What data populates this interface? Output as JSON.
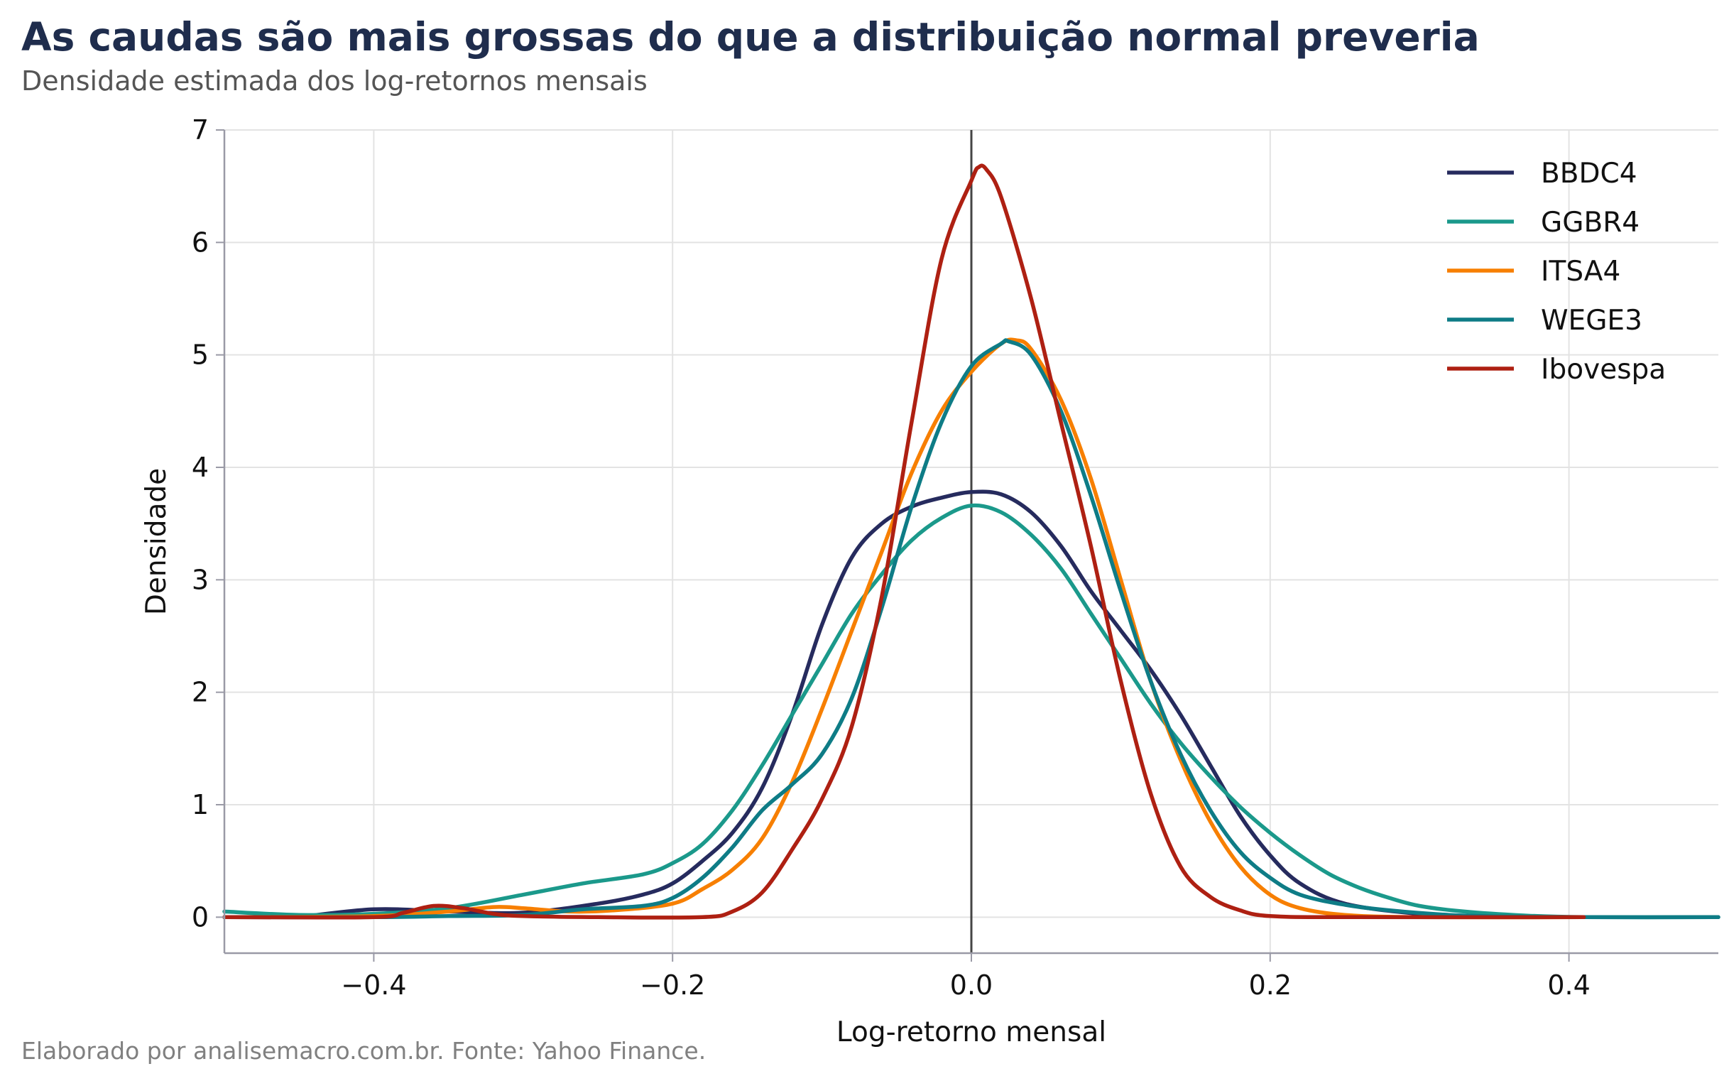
{
  "header": {
    "title": "As caudas são mais grossas do que a distribuição normal preveria",
    "subtitle": "Densidade estimada dos log-retornos mensais"
  },
  "footer": {
    "caption": "Elaborado por analisemacro.com.br. Fonte: Yahoo Finance."
  },
  "chart_data": {
    "type": "line",
    "title": "As caudas são mais grossas do que a distribuição normal preveria",
    "subtitle": "Densidade estimada dos log-retornos mensais",
    "xlabel": "Log-retorno mensal",
    "ylabel": "Densidade",
    "xlim": [
      -0.5,
      0.5
    ],
    "ylim": [
      -0.32,
      7
    ],
    "xticks": [
      -0.4,
      -0.2,
      0.0,
      0.2,
      0.4
    ],
    "xtick_labels": [
      "−0.4",
      "−0.2",
      "0.0",
      "0.2",
      "0.4"
    ],
    "yticks": [
      0,
      1,
      2,
      3,
      4,
      5,
      6,
      7
    ],
    "ytick_labels": [
      "0",
      "1",
      "2",
      "3",
      "4",
      "5",
      "6",
      "7"
    ],
    "grid": true,
    "legend_position": "top-right",
    "reference_line_x": 0.0,
    "series": [
      {
        "name": "BBDC4",
        "color": "#262b5e",
        "points": [
          [
            -0.45,
            0.0
          ],
          [
            -0.4,
            0.07
          ],
          [
            -0.35,
            0.05
          ],
          [
            -0.3,
            0.04
          ],
          [
            -0.25,
            0.12
          ],
          [
            -0.22,
            0.2
          ],
          [
            -0.2,
            0.3
          ],
          [
            -0.18,
            0.5
          ],
          [
            -0.16,
            0.75
          ],
          [
            -0.14,
            1.15
          ],
          [
            -0.12,
            1.8
          ],
          [
            -0.1,
            2.6
          ],
          [
            -0.08,
            3.2
          ],
          [
            -0.06,
            3.5
          ],
          [
            -0.04,
            3.65
          ],
          [
            -0.02,
            3.73
          ],
          [
            0.0,
            3.78
          ],
          [
            0.02,
            3.76
          ],
          [
            0.04,
            3.6
          ],
          [
            0.06,
            3.3
          ],
          [
            0.08,
            2.9
          ],
          [
            0.1,
            2.55
          ],
          [
            0.12,
            2.2
          ],
          [
            0.14,
            1.8
          ],
          [
            0.16,
            1.35
          ],
          [
            0.18,
            0.9
          ],
          [
            0.2,
            0.55
          ],
          [
            0.22,
            0.3
          ],
          [
            0.25,
            0.12
          ],
          [
            0.3,
            0.03
          ],
          [
            0.35,
            0.005
          ],
          [
            0.41,
            0.0
          ]
        ]
      },
      {
        "name": "GGBR4",
        "color": "#1b998b",
        "points": [
          [
            -0.5,
            0.05
          ],
          [
            -0.45,
            0.02
          ],
          [
            -0.4,
            0.03
          ],
          [
            -0.35,
            0.08
          ],
          [
            -0.3,
            0.2
          ],
          [
            -0.26,
            0.3
          ],
          [
            -0.22,
            0.38
          ],
          [
            -0.2,
            0.48
          ],
          [
            -0.18,
            0.65
          ],
          [
            -0.16,
            0.95
          ],
          [
            -0.14,
            1.35
          ],
          [
            -0.12,
            1.8
          ],
          [
            -0.1,
            2.25
          ],
          [
            -0.08,
            2.7
          ],
          [
            -0.06,
            3.05
          ],
          [
            -0.04,
            3.35
          ],
          [
            -0.02,
            3.55
          ],
          [
            0.0,
            3.66
          ],
          [
            0.02,
            3.6
          ],
          [
            0.04,
            3.4
          ],
          [
            0.06,
            3.1
          ],
          [
            0.08,
            2.7
          ],
          [
            0.1,
            2.3
          ],
          [
            0.12,
            1.9
          ],
          [
            0.14,
            1.55
          ],
          [
            0.16,
            1.25
          ],
          [
            0.18,
            0.98
          ],
          [
            0.2,
            0.75
          ],
          [
            0.22,
            0.55
          ],
          [
            0.24,
            0.38
          ],
          [
            0.26,
            0.26
          ],
          [
            0.28,
            0.17
          ],
          [
            0.3,
            0.1
          ],
          [
            0.33,
            0.05
          ],
          [
            0.37,
            0.015
          ],
          [
            0.41,
            0.0
          ],
          [
            0.5,
            0.0
          ]
        ]
      },
      {
        "name": "ITSA4",
        "color": "#f77f00",
        "points": [
          [
            -0.5,
            0.0
          ],
          [
            -0.4,
            0.01
          ],
          [
            -0.35,
            0.05
          ],
          [
            -0.32,
            0.09
          ],
          [
            -0.3,
            0.08
          ],
          [
            -0.27,
            0.05
          ],
          [
            -0.24,
            0.06
          ],
          [
            -0.2,
            0.12
          ],
          [
            -0.18,
            0.25
          ],
          [
            -0.16,
            0.42
          ],
          [
            -0.14,
            0.7
          ],
          [
            -0.12,
            1.2
          ],
          [
            -0.1,
            1.85
          ],
          [
            -0.08,
            2.55
          ],
          [
            -0.06,
            3.25
          ],
          [
            -0.04,
            3.95
          ],
          [
            -0.02,
            4.5
          ],
          [
            0.0,
            4.85
          ],
          [
            0.02,
            5.1
          ],
          [
            0.03,
            5.13
          ],
          [
            0.04,
            5.05
          ],
          [
            0.06,
            4.6
          ],
          [
            0.08,
            3.9
          ],
          [
            0.1,
            3.0
          ],
          [
            0.12,
            2.1
          ],
          [
            0.14,
            1.4
          ],
          [
            0.16,
            0.85
          ],
          [
            0.18,
            0.45
          ],
          [
            0.2,
            0.2
          ],
          [
            0.22,
            0.08
          ],
          [
            0.25,
            0.02
          ],
          [
            0.3,
            0.0
          ],
          [
            0.41,
            0.0
          ]
        ]
      },
      {
        "name": "WEGE3",
        "color": "#0e7c86",
        "points": [
          [
            -0.5,
            0.0
          ],
          [
            -0.4,
            0.0
          ],
          [
            -0.35,
            0.01
          ],
          [
            -0.3,
            0.02
          ],
          [
            -0.26,
            0.07
          ],
          [
            -0.22,
            0.1
          ],
          [
            -0.2,
            0.17
          ],
          [
            -0.18,
            0.35
          ],
          [
            -0.16,
            0.62
          ],
          [
            -0.14,
            0.95
          ],
          [
            -0.12,
            1.18
          ],
          [
            -0.1,
            1.45
          ],
          [
            -0.08,
            1.95
          ],
          [
            -0.06,
            2.75
          ],
          [
            -0.04,
            3.65
          ],
          [
            -0.02,
            4.4
          ],
          [
            0.0,
            4.9
          ],
          [
            0.02,
            5.1
          ],
          [
            0.025,
            5.12
          ],
          [
            0.04,
            5.0
          ],
          [
            0.06,
            4.5
          ],
          [
            0.08,
            3.75
          ],
          [
            0.1,
            2.9
          ],
          [
            0.12,
            2.1
          ],
          [
            0.14,
            1.45
          ],
          [
            0.16,
            0.95
          ],
          [
            0.18,
            0.58
          ],
          [
            0.2,
            0.35
          ],
          [
            0.22,
            0.2
          ],
          [
            0.25,
            0.11
          ],
          [
            0.28,
            0.06
          ],
          [
            0.32,
            0.02
          ],
          [
            0.36,
            0.005
          ],
          [
            0.41,
            0.0
          ],
          [
            0.5,
            0.0
          ]
        ]
      },
      {
        "name": "Ibovespa",
        "color": "#ae2012",
        "points": [
          [
            -0.5,
            0.0
          ],
          [
            -0.4,
            0.0
          ],
          [
            -0.38,
            0.04
          ],
          [
            -0.36,
            0.1
          ],
          [
            -0.34,
            0.08
          ],
          [
            -0.32,
            0.03
          ],
          [
            -0.3,
            0.01
          ],
          [
            -0.25,
            0.0
          ],
          [
            -0.18,
            0.0
          ],
          [
            -0.16,
            0.05
          ],
          [
            -0.14,
            0.22
          ],
          [
            -0.12,
            0.6
          ],
          [
            -0.1,
            1.05
          ],
          [
            -0.08,
            1.7
          ],
          [
            -0.06,
            2.85
          ],
          [
            -0.04,
            4.4
          ],
          [
            -0.02,
            5.85
          ],
          [
            0.0,
            6.55
          ],
          [
            0.005,
            6.67
          ],
          [
            0.01,
            6.65
          ],
          [
            0.02,
            6.4
          ],
          [
            0.04,
            5.5
          ],
          [
            0.06,
            4.4
          ],
          [
            0.08,
            3.3
          ],
          [
            0.1,
            2.1
          ],
          [
            0.12,
            1.1
          ],
          [
            0.14,
            0.45
          ],
          [
            0.16,
            0.18
          ],
          [
            0.18,
            0.06
          ],
          [
            0.2,
            0.01
          ],
          [
            0.25,
            0.0
          ],
          [
            0.41,
            0.0
          ]
        ]
      }
    ]
  }
}
